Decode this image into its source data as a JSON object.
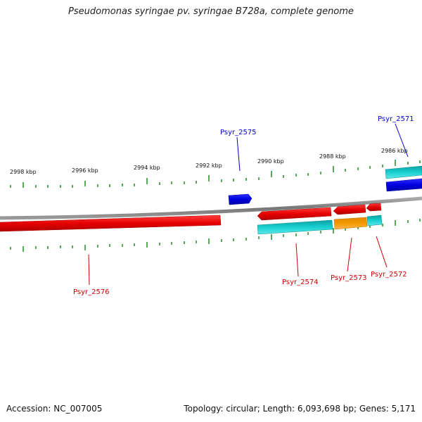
{
  "title": "Pseudomonas syringae pv. syringae B728a, complete genome",
  "footer": {
    "accession": "Accession: NC_007005",
    "summary": "Topology: circular; Length: 6,093,698 bp; Genes: 5,171"
  },
  "scale_labels": [
    "2998 kbp",
    "2996 kbp",
    "2994 kbp",
    "2992 kbp",
    "2990 kbp",
    "2988 kbp",
    "2986 kbp"
  ],
  "gene_labels": [
    {
      "name": "Psyr_2575",
      "color": "#0000cc"
    },
    {
      "name": "Psyr_2571",
      "color": "#0000cc"
    },
    {
      "name": "Psyr_2576",
      "color": "#cc0000"
    },
    {
      "name": "Psyr_2574",
      "color": "#cc0000"
    },
    {
      "name": "Psyr_2573",
      "color": "#cc0000"
    },
    {
      "name": "Psyr_2572",
      "color": "#cc0000"
    }
  ],
  "colors": {
    "cds": "#ee0000",
    "cds_forward": "#0000ee",
    "rna_cyan": "#11c4c4",
    "rna_orange": "#f39a00",
    "backbone": "#8a8a8a",
    "ticks": "#228b22"
  }
}
